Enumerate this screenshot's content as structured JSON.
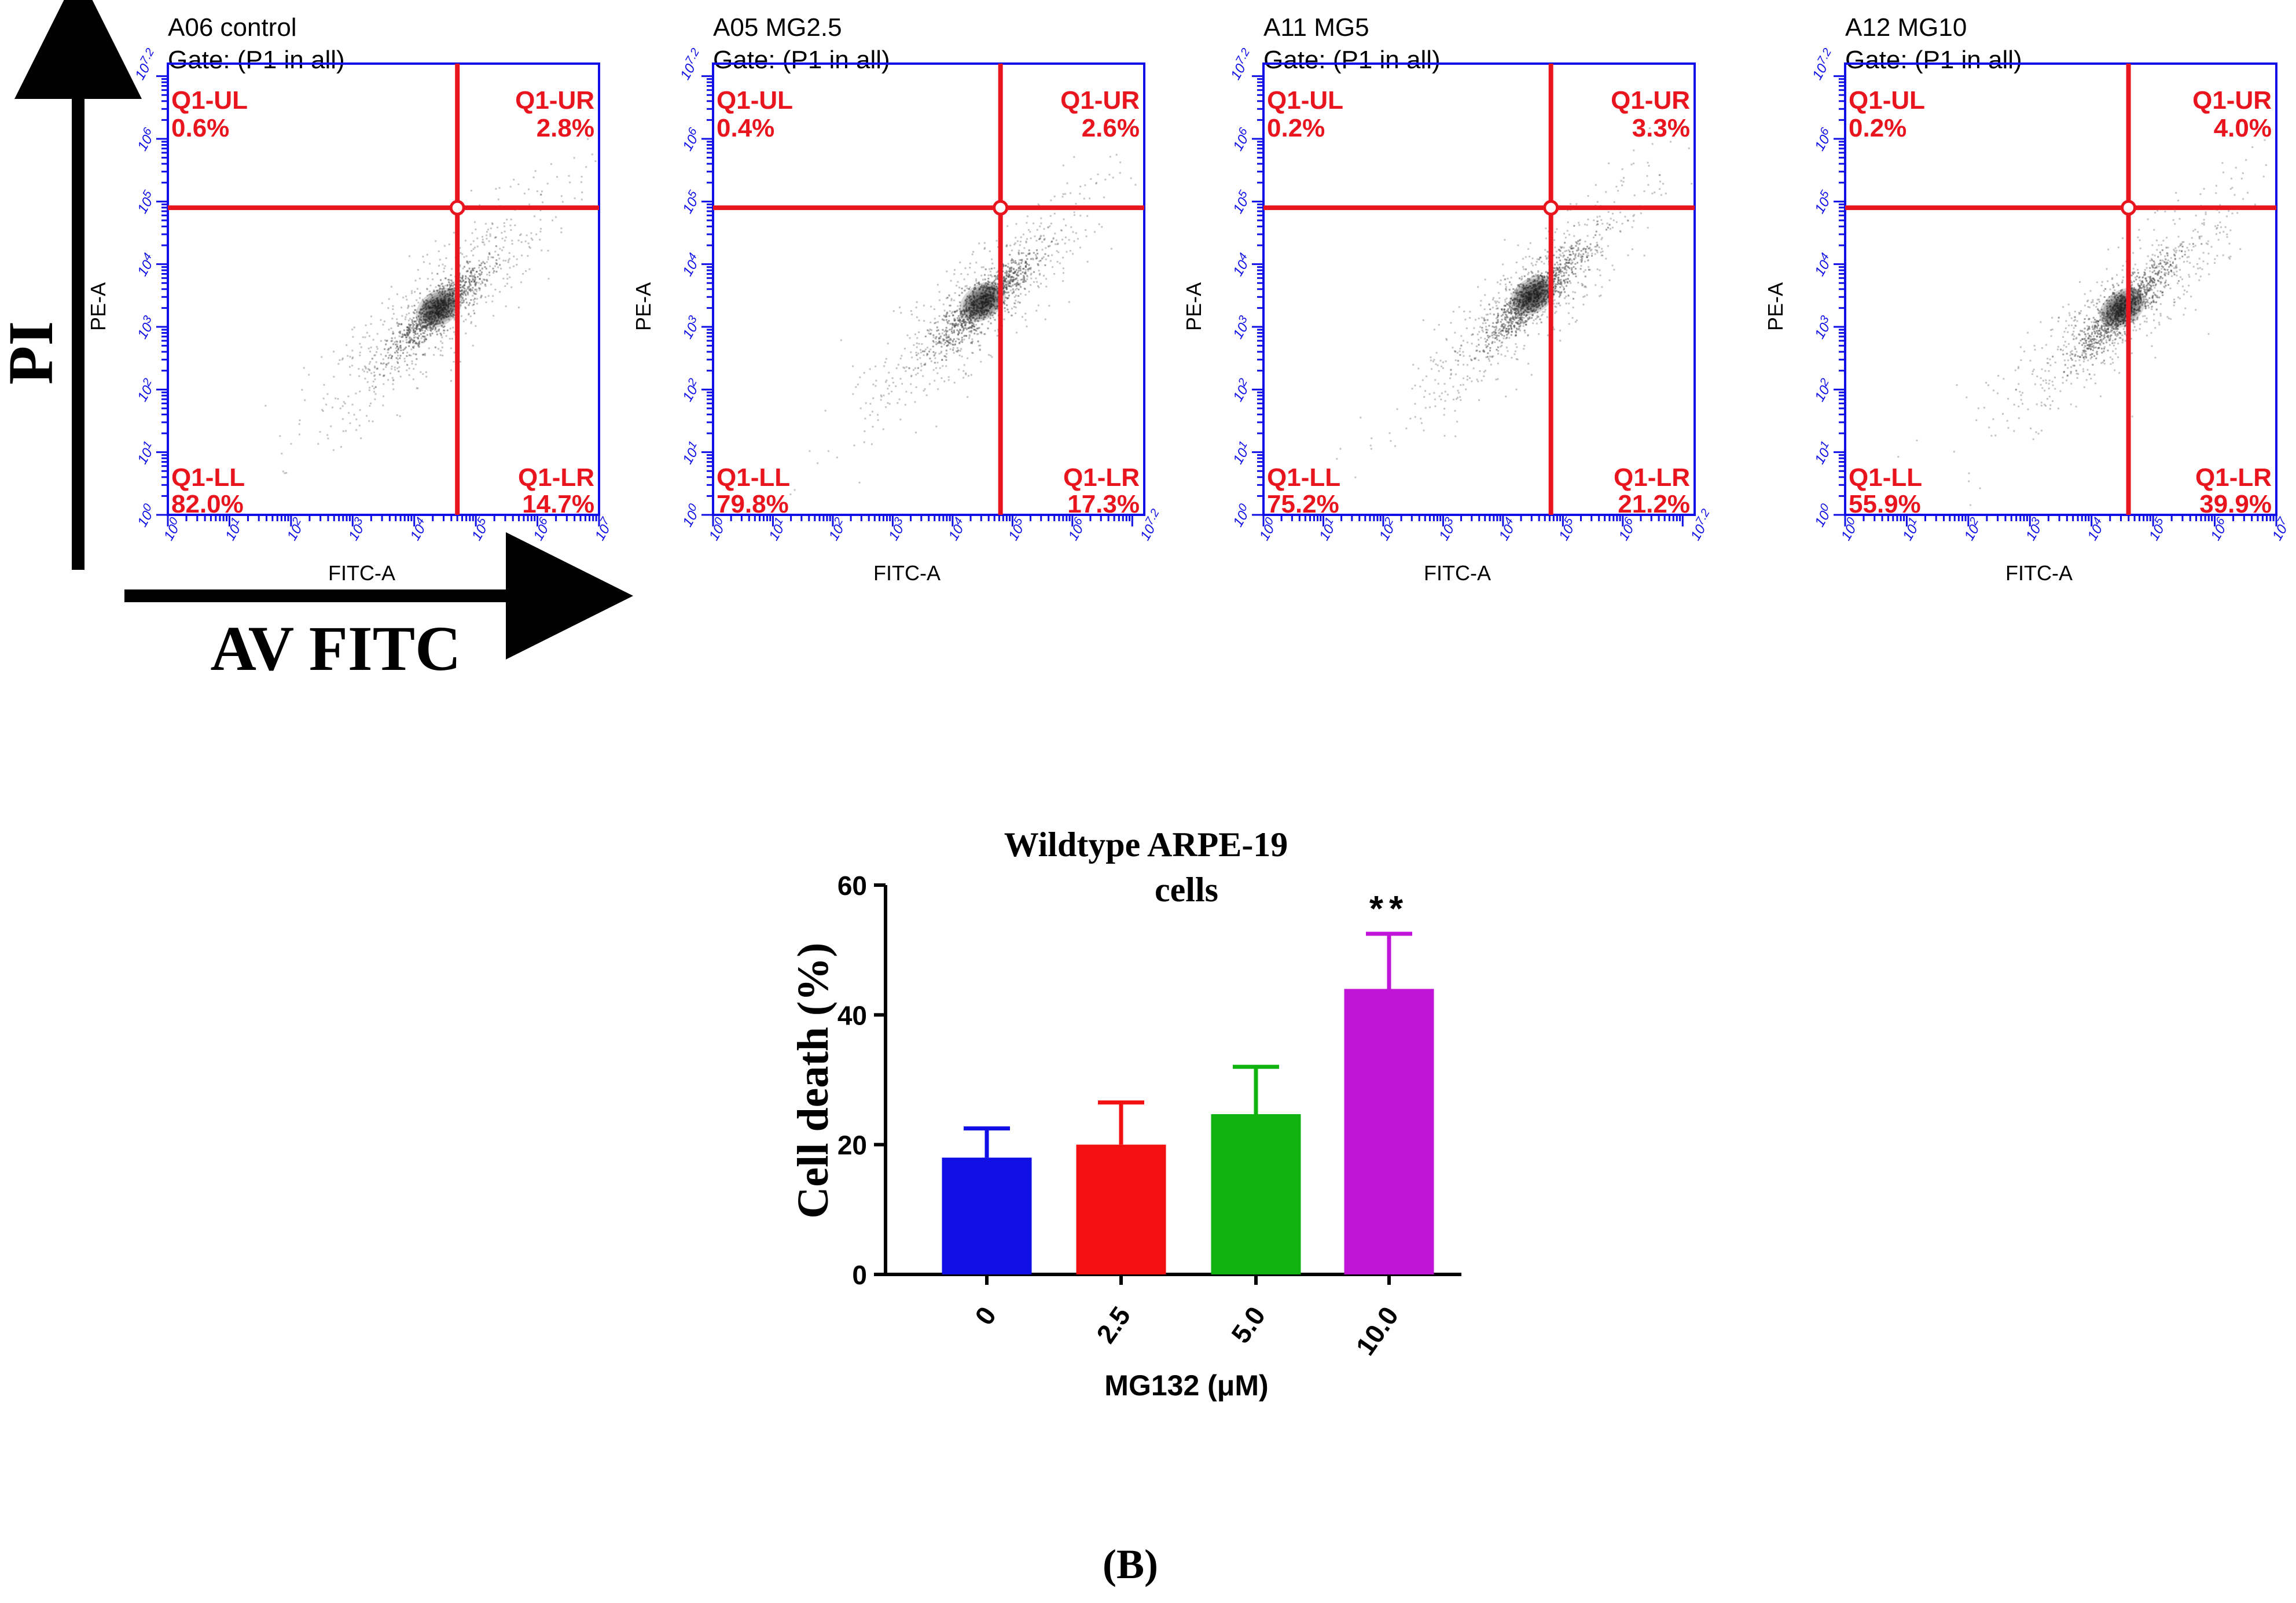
{
  "colors": {
    "axis_blue": "#1010e6",
    "gate_red": "#e8141e",
    "dot_gray": "#555555",
    "black": "#000000"
  },
  "figure": {
    "y_axis_label": "PI",
    "x_axis_label": "AV FITC",
    "panel_caption": "(B)"
  },
  "chart_data": [
    {
      "type": "scatter",
      "title": "A06 control",
      "subtitle": "Gate: (P1 in all)",
      "xlabel": "FITC-A",
      "ylabel": "PE-A",
      "x_scale": "log10",
      "xlim": [
        0,
        7
      ],
      "ylim": [
        0,
        7.2
      ],
      "x_tick_labels": [
        "10^0",
        "10^1",
        "10^2",
        "10^3",
        "10^4",
        "10^5",
        "10^6",
        "10^7"
      ],
      "y_tick_labels": [
        "10^0",
        "10^1",
        "10^2",
        "10^3",
        "10^4",
        "10^5",
        "10^6",
        "10^7.2"
      ],
      "quadrant_gate": {
        "x_log": 4.7,
        "y_log": 4.9
      },
      "quadrants": {
        "UL": {
          "label": "Q1-UL",
          "value": "0.6%"
        },
        "UR": {
          "label": "Q1-UR",
          "value": "2.8%"
        },
        "LL": {
          "label": "Q1-LL",
          "value": "82.0%"
        },
        "LR": {
          "label": "Q1-LR",
          "value": "14.7%"
        }
      },
      "cluster": {
        "x_log": 4.4,
        "y_log": 3.3
      }
    },
    {
      "type": "scatter",
      "title": "A05 MG2.5",
      "subtitle": "Gate: (P1 in all)",
      "xlabel": "FITC-A",
      "ylabel": "PE-A",
      "x_scale": "log10",
      "xlim": [
        0,
        7.2
      ],
      "ylim": [
        0,
        7.2
      ],
      "x_tick_labels": [
        "10^0",
        "10^1",
        "10^2",
        "10^3",
        "10^4",
        "10^5",
        "10^6",
        "10^7.2"
      ],
      "y_tick_labels": [
        "10^0",
        "10^1",
        "10^2",
        "10^3",
        "10^4",
        "10^5",
        "10^6",
        "10^7.2"
      ],
      "quadrant_gate": {
        "x_log": 4.8,
        "y_log": 4.9
      },
      "quadrants": {
        "UL": {
          "label": "Q1-UL",
          "value": "0.4%"
        },
        "UR": {
          "label": "Q1-UR",
          "value": "2.6%"
        },
        "LL": {
          "label": "Q1-LL",
          "value": "79.8%"
        },
        "LR": {
          "label": "Q1-LR",
          "value": "17.3%"
        }
      },
      "cluster": {
        "x_log": 4.5,
        "y_log": 3.4
      }
    },
    {
      "type": "scatter",
      "title": "A11 MG5",
      "subtitle": "Gate: (P1 in all)",
      "xlabel": "FITC-A",
      "ylabel": "PE-A",
      "x_scale": "log10",
      "xlim": [
        0,
        7.2
      ],
      "ylim": [
        0,
        7.2
      ],
      "x_tick_labels": [
        "10^0",
        "10^1",
        "10^2",
        "10^3",
        "10^4",
        "10^5",
        "10^6",
        "10^7.2"
      ],
      "y_tick_labels": [
        "10^0",
        "10^1",
        "10^2",
        "10^3",
        "10^4",
        "10^5",
        "10^6",
        "10^7.2"
      ],
      "quadrant_gate": {
        "x_log": 4.8,
        "y_log": 4.9
      },
      "quadrants": {
        "UL": {
          "label": "Q1-UL",
          "value": "0.2%"
        },
        "UR": {
          "label": "Q1-UR",
          "value": "3.3%"
        },
        "LL": {
          "label": "Q1-LL",
          "value": "75.2%"
        },
        "LR": {
          "label": "Q1-LR",
          "value": "21.2%"
        }
      },
      "cluster": {
        "x_log": 4.5,
        "y_log": 3.5
      }
    },
    {
      "type": "scatter",
      "title": "A12 MG10",
      "subtitle": "Gate: (P1 in all)",
      "xlabel": "FITC-A",
      "ylabel": "PE-A",
      "x_scale": "log10",
      "xlim": [
        0,
        7
      ],
      "ylim": [
        0,
        7.2
      ],
      "x_tick_labels": [
        "10^0",
        "10^1",
        "10^2",
        "10^3",
        "10^4",
        "10^5",
        "10^6",
        "10^7"
      ],
      "y_tick_labels": [
        "10^0",
        "10^1",
        "10^2",
        "10^3",
        "10^4",
        "10^5",
        "10^6",
        "10^7.2"
      ],
      "quadrant_gate": {
        "x_log": 4.6,
        "y_log": 4.9
      },
      "quadrants": {
        "UL": {
          "label": "Q1-UL",
          "value": "0.2%"
        },
        "UR": {
          "label": "Q1-UR",
          "value": "4.0%"
        },
        "LL": {
          "label": "Q1-LL",
          "value": "55.9%"
        },
        "LR": {
          "label": "Q1-LR",
          "value": "39.9%"
        }
      },
      "cluster": {
        "x_log": 4.5,
        "y_log": 3.3
      }
    },
    {
      "type": "bar",
      "title": "Wildtype ARPE-19",
      "title_line2": "cells",
      "xlabel": "MG132 (μM)",
      "ylabel": "Cell death (%)",
      "ylim": [
        0,
        60
      ],
      "yticks": [
        0,
        20,
        40,
        60
      ],
      "categories": [
        "0",
        "2.5",
        "5.0",
        "10.0"
      ],
      "values": [
        18,
        20,
        24.7,
        44
      ],
      "errors": [
        4.5,
        6.5,
        7.3,
        8.5
      ],
      "colors": [
        "#0f0fe6",
        "#f21010",
        "#0fb20f",
        "#c014d8"
      ],
      "annotations": [
        {
          "category": "10.0",
          "text": "**"
        }
      ]
    }
  ]
}
